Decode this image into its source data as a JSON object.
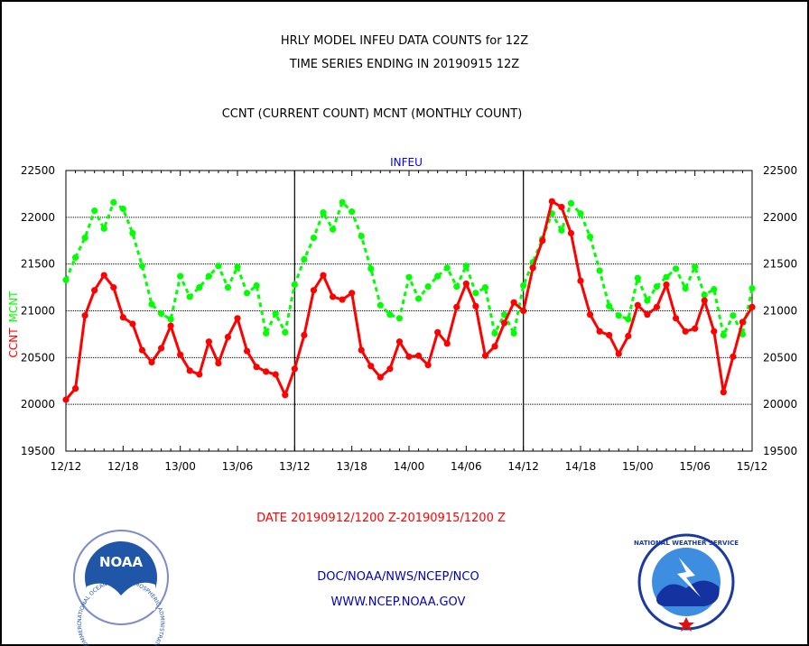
{
  "header": {
    "title_line1": "HRLY MODEL INFEU DATA COUNTS for 12Z",
    "title_line2": "TIME SERIES ENDING IN 20190915 12Z",
    "subtitle": "CCNT (CURRENT COUNT) MCNT (MONTHLY COUNT)"
  },
  "footer": {
    "date_range": "DATE 20190912/1200 Z-20190915/1200 Z",
    "org_path": "DOC/NOAA/NWS/NCEP/NCO",
    "website": "WWW.NCEP.NOAA.GOV"
  },
  "logos": {
    "noaa_text": "NOAA",
    "noaa_ring": "NATIONAL OCEANIC AND ATMOSPHERIC ADMINISTRATION · U.S. DEPARTMENT OF COMMERCE ·",
    "nws_ring": "NATIONAL WEATHER SERVICE"
  },
  "colors": {
    "ccnt": "#ff0000",
    "mcnt": "#00ff00",
    "panel_title": "#0000ff",
    "footer_links": "#0000c0",
    "date_text": "#ff0000"
  },
  "chart_data": {
    "type": "line",
    "title": "INFEU",
    "ylabel": "CCNT  MCNT",
    "ylabel_parts": [
      "CCNT",
      "MCNT"
    ],
    "ylim": [
      19500,
      22500
    ],
    "yticks": [
      19500,
      20000,
      20500,
      21000,
      21500,
      22000,
      22500
    ],
    "x_tick_labels": [
      "12/12",
      "12/18",
      "13/00",
      "13/06",
      "13/12",
      "13/18",
      "14/00",
      "14/06",
      "14/12",
      "14/18",
      "15/00",
      "15/06",
      "15/12"
    ],
    "x_tick_hours": [
      0,
      6,
      12,
      18,
      24,
      30,
      36,
      42,
      48,
      54,
      60,
      66,
      72
    ],
    "day_separators_hours": [
      24,
      48
    ],
    "grid": "horizontal dashed at each y tick",
    "series": [
      {
        "name": "CCNT",
        "style": "solid",
        "x_hours": [
          0,
          1,
          2,
          3,
          4,
          5,
          6,
          7,
          8,
          9,
          10,
          11,
          12,
          13,
          14,
          15,
          16,
          17,
          18,
          19,
          20,
          21,
          22,
          23,
          24,
          25,
          26,
          27,
          28,
          29,
          30,
          31,
          32,
          33,
          34,
          35,
          36,
          37,
          38,
          39,
          40,
          41,
          42,
          43,
          44,
          45,
          46,
          47,
          48,
          49,
          50,
          51,
          52,
          53,
          54,
          55,
          56,
          57,
          58,
          59,
          60,
          61,
          62,
          63,
          64,
          65,
          66,
          67,
          68,
          69,
          70,
          71,
          72
        ],
        "values": [
          20050,
          20170,
          20950,
          21220,
          21380,
          21250,
          20930,
          20860,
          20580,
          20450,
          20600,
          20840,
          20530,
          20360,
          20320,
          20670,
          20440,
          20720,
          20920,
          20570,
          20400,
          20350,
          20320,
          20100,
          20380,
          20740,
          21220,
          21380,
          21150,
          21120,
          21190,
          20580,
          20410,
          20290,
          20380,
          20670,
          20510,
          20520,
          20420,
          20770,
          20650,
          21040,
          21290,
          21050,
          20520,
          20620,
          20870,
          21090,
          21000,
          21460,
          21750,
          22170,
          22110,
          21830,
          21320,
          20960,
          20780,
          20740,
          20540,
          20730,
          21060,
          20960,
          21040,
          21280,
          20920,
          20780,
          20810,
          21110,
          20780,
          20130,
          20510,
          20880,
          21040
        ]
      },
      {
        "name": "MCNT",
        "style": "dashed",
        "x_hours": [
          0,
          1,
          2,
          3,
          4,
          5,
          6,
          7,
          8,
          9,
          10,
          11,
          12,
          13,
          14,
          15,
          16,
          17,
          18,
          19,
          20,
          21,
          22,
          23,
          24,
          25,
          26,
          27,
          28,
          29,
          30,
          31,
          32,
          33,
          34,
          35,
          36,
          37,
          38,
          39,
          40,
          41,
          42,
          43,
          44,
          45,
          46,
          47,
          48,
          49,
          50,
          51,
          52,
          53,
          54,
          55,
          56,
          57,
          58,
          59,
          60,
          61,
          62,
          63,
          64,
          65,
          66,
          67,
          68,
          69,
          70,
          71,
          72
        ],
        "values": [
          21330,
          21570,
          21780,
          22070,
          21880,
          22160,
          22090,
          21830,
          21480,
          21070,
          20970,
          20910,
          21370,
          21150,
          21250,
          21370,
          21480,
          21250,
          21470,
          21190,
          21270,
          20760,
          20970,
          20770,
          21280,
          21550,
          21780,
          22050,
          21870,
          22160,
          22060,
          21800,
          21450,
          21060,
          20960,
          20920,
          21360,
          21130,
          21260,
          21370,
          21460,
          21260,
          21480,
          21190,
          21250,
          20760,
          20960,
          20760,
          21270,
          21520,
          21770,
          22040,
          21860,
          22150,
          22040,
          21790,
          21430,
          21050,
          20950,
          20910,
          21350,
          21110,
          21260,
          21360,
          21450,
          21240,
          21470,
          21170,
          21230,
          20740,
          20950,
          20750,
          21240
        ]
      }
    ]
  }
}
